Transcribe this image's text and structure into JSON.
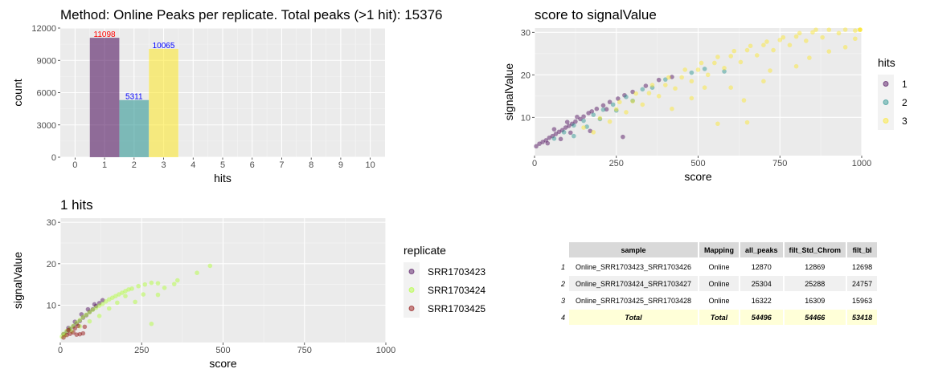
{
  "chart_data": [
    {
      "type": "bar",
      "title": "Method: Online Peaks per replicate. Total peaks (>1 hit): 15376",
      "xlabel": "hits",
      "ylabel": "count",
      "x_ticks": [
        "0",
        "1",
        "2",
        "3",
        "4",
        "5",
        "6",
        "7",
        "8",
        "9",
        "10"
      ],
      "y_ticks": [
        "0",
        "3000",
        "6000",
        "9000",
        "12000"
      ],
      "xlim": [
        -0.5,
        10.5
      ],
      "ylim": [
        0,
        12000
      ],
      "categories": [
        1,
        2,
        3
      ],
      "values": [
        11098,
        5311,
        10065
      ],
      "labels": [
        "11098",
        "5311",
        "10065"
      ],
      "colors": [
        "#440154",
        "#21908C",
        "#FDE725"
      ],
      "label_colors": [
        "#ff0000",
        "#0000ff",
        "#0000ff"
      ]
    },
    {
      "type": "scatter",
      "title": "score to signalValue",
      "xlabel": "score",
      "ylabel": "signalValue",
      "x_ticks": [
        "0",
        "250",
        "500",
        "750",
        "1000"
      ],
      "y_ticks": [
        "10",
        "20",
        "30"
      ],
      "xlim": [
        0,
        1000
      ],
      "ylim": [
        1,
        31
      ],
      "legend_title": "hits",
      "legend_position": "right",
      "series": [
        {
          "name": "1",
          "color": "#440154",
          "points": [
            [
              5,
              3.2
            ],
            [
              15,
              3.8
            ],
            [
              25,
              4.2
            ],
            [
              35,
              4.6
            ],
            [
              45,
              5.2
            ],
            [
              55,
              5.6
            ],
            [
              65,
              6.1
            ],
            [
              75,
              6.6
            ],
            [
              85,
              7.0
            ],
            [
              95,
              7.6
            ],
            [
              105,
              8.0
            ],
            [
              115,
              8.5
            ],
            [
              125,
              9.0
            ],
            [
              140,
              9.6
            ],
            [
              150,
              10.2
            ],
            [
              165,
              11.0
            ],
            [
              175,
              11.4
            ],
            [
              190,
              12.0
            ],
            [
              210,
              12.8
            ],
            [
              230,
              13.6
            ],
            [
              255,
              14.4
            ],
            [
              275,
              15.2
            ],
            [
              300,
              16.0
            ],
            [
              340,
              17.4
            ],
            [
              380,
              18.8
            ],
            [
              420,
              19.5
            ],
            [
              40,
              3.9
            ],
            [
              80,
              4.9
            ],
            [
              110,
              6.4
            ],
            [
              170,
              6.8
            ],
            [
              270,
              5.4
            ],
            [
              60,
              7.2
            ],
            [
              100,
              8.9
            ],
            [
              130,
              10.1
            ],
            [
              220,
              11.9
            ]
          ]
        },
        {
          "name": "2",
          "color": "#21908C",
          "points": [
            [
              60,
              5.0
            ],
            [
              90,
              6.5
            ],
            [
              120,
              8.1
            ],
            [
              150,
              9.2
            ],
            [
              180,
              10.6
            ],
            [
              210,
              11.8
            ],
            [
              240,
              13.0
            ],
            [
              280,
              14.8
            ],
            [
              330,
              16.6
            ],
            [
              400,
              18.9
            ],
            [
              480,
              20.5
            ],
            [
              520,
              21.4
            ],
            [
              580,
              20.8
            ],
            [
              120,
              5.6
            ],
            [
              160,
              7.8
            ],
            [
              200,
              9.6
            ],
            [
              250,
              11.6
            ],
            [
              300,
              13.9
            ],
            [
              360,
              17.0
            ]
          ]
        },
        {
          "name": "3",
          "color": "#FDE725",
          "points": [
            [
              150,
              7.6
            ],
            [
              200,
              9.8
            ],
            [
              250,
              11.9
            ],
            [
              300,
              13.8
            ],
            [
              350,
              15.7
            ],
            [
              400,
              17.6
            ],
            [
              450,
              19.4
            ],
            [
              500,
              21.2
            ],
            [
              550,
              22.8
            ],
            [
              600,
              24.4
            ],
            [
              650,
              25.8
            ],
            [
              700,
              27.0
            ],
            [
              750,
              28.2
            ],
            [
              800,
              29.0
            ],
            [
              850,
              30.0
            ],
            [
              900,
              30.6
            ],
            [
              950,
              31.0
            ],
            [
              1000,
              31.0
            ],
            [
              1050,
              31.0
            ],
            [
              180,
              6.5
            ],
            [
              230,
              9.0
            ],
            [
              280,
              11.2
            ],
            [
              330,
              13.0
            ],
            [
              380,
              15.0
            ],
            [
              430,
              16.8
            ],
            [
              480,
              18.5
            ],
            [
              530,
              20.0
            ],
            [
              580,
              21.6
            ],
            [
              630,
              23.0
            ],
            [
              680,
              24.6
            ],
            [
              730,
              25.8
            ],
            [
              780,
              27.0
            ],
            [
              830,
              28.0
            ],
            [
              880,
              28.8
            ],
            [
              930,
              29.8
            ],
            [
              980,
              30.4
            ],
            [
              1030,
              30.6
            ],
            [
              260,
              13.6
            ],
            [
              310,
              15.6
            ],
            [
              360,
              17.6
            ],
            [
              410,
              19.4
            ],
            [
              460,
              21.2
            ],
            [
              510,
              22.8
            ],
            [
              560,
              24.2
            ],
            [
              610,
              25.6
            ],
            [
              660,
              26.8
            ],
            [
              710,
              27.8
            ],
            [
              760,
              28.8
            ],
            [
              810,
              29.8
            ],
            [
              860,
              30.6
            ],
            [
              560,
              8.5
            ],
            [
              650,
              8.8
            ],
            [
              640,
              14.0
            ],
            [
              700,
              18.5
            ],
            [
              800,
              22.0
            ],
            [
              900,
              25.5
            ],
            [
              980,
              28.5
            ],
            [
              420,
              12.0
            ],
            [
              480,
              14.5
            ],
            [
              520,
              17.0
            ],
            [
              600,
              17.0
            ],
            [
              720,
              21.0
            ],
            [
              840,
              24.0
            ],
            [
              950,
              26.5
            ]
          ]
        }
      ]
    },
    {
      "type": "scatter",
      "title": "1 hits",
      "xlabel": "score",
      "ylabel": "signalValue",
      "x_ticks": [
        "0",
        "250",
        "500",
        "750",
        "1000"
      ],
      "y_ticks": [
        "10",
        "20",
        "30"
      ],
      "xlim": [
        0,
        1000
      ],
      "ylim": [
        1,
        31
      ],
      "legend_title": "replicate",
      "legend_position": "right",
      "series": [
        {
          "name": "SRR1703423",
          "color": "#440154",
          "points": [
            [
              10,
              3.0
            ],
            [
              20,
              3.6
            ],
            [
              30,
              4.2
            ],
            [
              40,
              4.9
            ],
            [
              50,
              5.5
            ],
            [
              60,
              6.2
            ],
            [
              70,
              7.0
            ],
            [
              80,
              7.6
            ],
            [
              90,
              8.4
            ],
            [
              100,
              9.0
            ],
            [
              110,
              9.8
            ],
            [
              120,
              10.5
            ],
            [
              130,
              11.2
            ],
            [
              25,
              4.5
            ],
            [
              45,
              6.0
            ],
            [
              65,
              7.8
            ],
            [
              85,
              9.0
            ],
            [
              105,
              10.2
            ]
          ]
        },
        {
          "name": "SRR1703424",
          "color": "#ADFF2F",
          "points": [
            [
              10,
              3.1
            ],
            [
              20,
              3.8
            ],
            [
              30,
              4.4
            ],
            [
              40,
              5.0
            ],
            [
              50,
              5.8
            ],
            [
              60,
              6.4
            ],
            [
              70,
              7.1
            ],
            [
              80,
              7.7
            ],
            [
              90,
              8.3
            ],
            [
              100,
              8.9
            ],
            [
              110,
              9.4
            ],
            [
              120,
              9.9
            ],
            [
              130,
              10.3
            ],
            [
              140,
              10.9
            ],
            [
              150,
              11.4
            ],
            [
              160,
              11.8
            ],
            [
              170,
              12.2
            ],
            [
              180,
              12.6
            ],
            [
              190,
              13.0
            ],
            [
              200,
              13.4
            ],
            [
              210,
              13.8
            ],
            [
              220,
              14.0
            ],
            [
              240,
              14.6
            ],
            [
              260,
              15.0
            ],
            [
              280,
              15.4
            ],
            [
              300,
              15.3
            ],
            [
              320,
              14.2
            ],
            [
              350,
              15.1
            ],
            [
              360,
              16.0
            ],
            [
              420,
              17.8
            ],
            [
              460,
              19.5
            ],
            [
              280,
              5.5
            ],
            [
              230,
              10.8
            ],
            [
              255,
              12.6
            ],
            [
              300,
              12.5
            ],
            [
              200,
              12.2
            ],
            [
              175,
              10.6
            ],
            [
              150,
              9.2
            ],
            [
              120,
              7.4
            ],
            [
              90,
              6.1
            ],
            [
              60,
              4.9
            ],
            [
              35,
              3.7
            ],
            [
              15,
              2.8
            ],
            [
              5,
              2.4
            ]
          ]
        },
        {
          "name": "SRR1703425",
          "color": "#8B0000",
          "points": [
            [
              10,
              2.2
            ],
            [
              20,
              2.8
            ],
            [
              30,
              3.1
            ],
            [
              40,
              3.4
            ],
            [
              50,
              2.9
            ],
            [
              60,
              3.0
            ],
            [
              70,
              3.2
            ],
            [
              25,
              4.0
            ],
            [
              45,
              4.4
            ],
            [
              55,
              5.0
            ],
            [
              75,
              4.8
            ]
          ]
        }
      ]
    },
    {
      "type": "table",
      "columns": [
        "sample",
        "Mapping",
        "all_peaks",
        "filt_Std_Chrom",
        "filt_bl"
      ],
      "row_names": [
        "1",
        "2",
        "3",
        "4"
      ],
      "rows": [
        [
          "Online_SRR1703423_SRR1703426",
          "Online",
          "12870",
          "12869",
          "12698"
        ],
        [
          "Online_SRR1703424_SRR1703427",
          "Online",
          "25304",
          "25288",
          "24757"
        ],
        [
          "Online_SRR1703425_SRR1703428",
          "Online",
          "16322",
          "16309",
          "15963"
        ],
        [
          "Total",
          "Total",
          "54496",
          "54466",
          "53418"
        ]
      ]
    }
  ]
}
